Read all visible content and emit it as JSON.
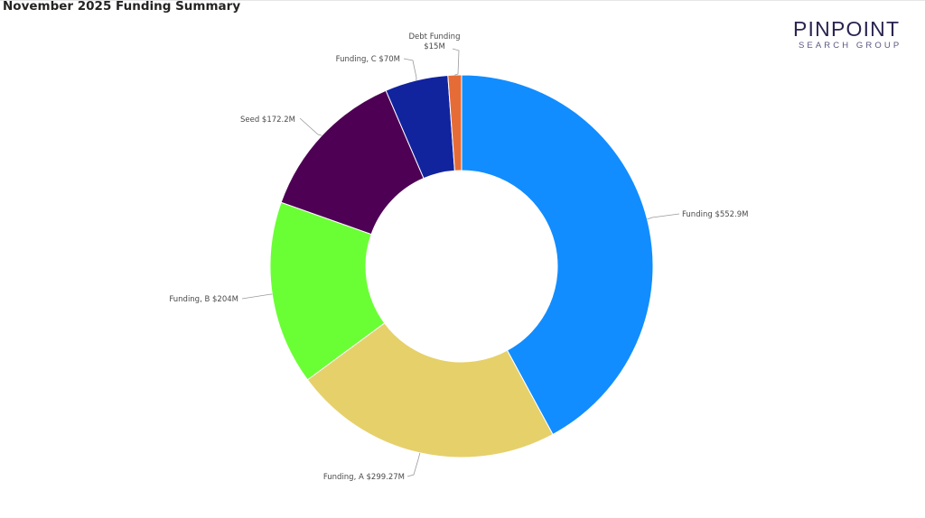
{
  "report": {
    "title": "November 2025 Funding Summary"
  },
  "logo": {
    "name": "PINPOINT",
    "sub": "SEARCH GROUP"
  },
  "chart_data": {
    "type": "pie",
    "subtype": "donut",
    "title": "",
    "slices": [
      {
        "category": "Funding",
        "value": 552.9,
        "label": "Funding $552.9M",
        "color": "#118DFF"
      },
      {
        "category": "Funding, A",
        "value": 299.27,
        "label": "Funding, A $299.27M",
        "color": "#E6D06A"
      },
      {
        "category": "Funding, B",
        "value": 204,
        "label": "Funding, B $204M",
        "color": "#6AFF34"
      },
      {
        "category": "Seed",
        "value": 172.2,
        "label": "Seed $172.2M",
        "color": "#4E0054"
      },
      {
        "category": "Funding, C",
        "value": 70,
        "label": "Funding, C $70M",
        "color": "#12239E"
      },
      {
        "category": "Debt Funding",
        "value": 15,
        "label": [
          "Debt Funding",
          "$15M"
        ],
        "color": "#E66C37"
      }
    ],
    "legend": "none",
    "unit": "$M"
  }
}
